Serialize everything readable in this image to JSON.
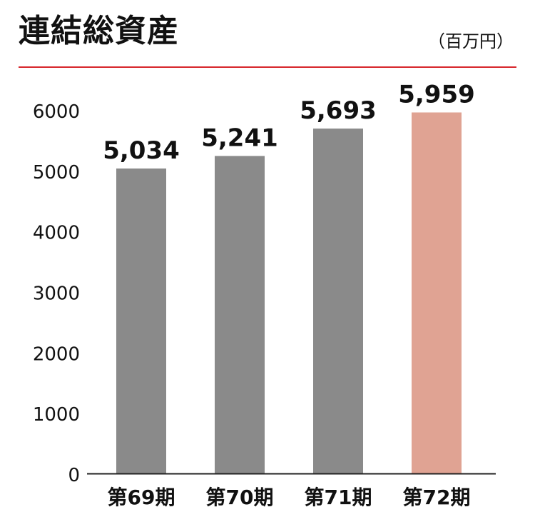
{
  "chart_data": {
    "type": "bar",
    "title": "連結総資産",
    "unit": "（百万円）",
    "categories": [
      "第69期",
      "第70期",
      "第71期",
      "第72期"
    ],
    "values": [
      5034,
      5241,
      5693,
      5959
    ],
    "value_labels": [
      "5,034",
      "5,241",
      "5,693",
      "5,959"
    ],
    "yticks": [
      "0",
      "1000",
      "2000",
      "3000",
      "4000",
      "5000",
      "6000"
    ],
    "ylim": [
      0,
      6000
    ],
    "grid": false,
    "legend": "none",
    "colors": {
      "bar": "#8a8a8a",
      "highlight": "#e0a393",
      "axis": "#222222",
      "rule": "#d7262c"
    },
    "highlight_index": 3
  }
}
